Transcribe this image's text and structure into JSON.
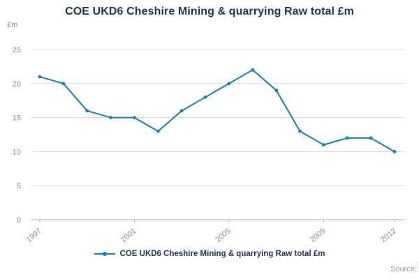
{
  "chart_data": {
    "type": "line",
    "title": "COE UKD6 Cheshire Mining & quarrying Raw total £m",
    "ylabel": "£m",
    "xlabel": "",
    "x": [
      1997,
      1998,
      1999,
      2000,
      2001,
      2002,
      2003,
      2004,
      2005,
      2006,
      2007,
      2008,
      2009,
      2010,
      2011,
      2012
    ],
    "values": [
      21,
      20,
      16,
      15,
      15,
      13,
      16,
      18,
      20,
      22,
      19,
      13,
      11,
      12,
      12,
      10
    ],
    "ylim": [
      0,
      25
    ],
    "yticks": [
      0,
      5,
      10,
      15,
      20,
      25
    ],
    "xticks": [
      1997,
      2001,
      2005,
      2009,
      2012
    ],
    "grid": true,
    "legend_position": "bottom",
    "legend": [
      "COE UKD6 Cheshire Mining & quarrying Raw total £m"
    ],
    "source_label": "Source:"
  },
  "colors": {
    "accent": "#1a7cb8",
    "title": "#1f3557",
    "axis_text": "#8c8c8c",
    "grid": "#d9d9d9",
    "baseline": "#b3b3b3",
    "source": "#9b9b9b"
  }
}
